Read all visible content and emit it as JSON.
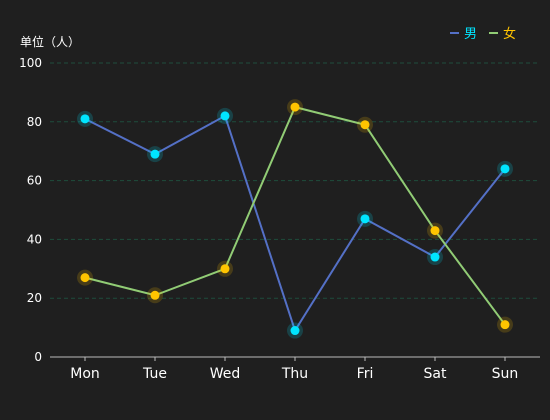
{
  "chart_data": {
    "type": "line",
    "unit_label": "单位（人）",
    "categories": [
      "Mon",
      "Tue",
      "Wed",
      "Thu",
      "Fri",
      "Sat",
      "Sun"
    ],
    "ylim": [
      0,
      100
    ],
    "yticks": [
      0,
      20,
      40,
      60,
      80,
      100
    ],
    "grid": true,
    "legend_position": "top-right",
    "series": [
      {
        "name": "男",
        "values": [
          81,
          69,
          82,
          9,
          47,
          34,
          64
        ],
        "line_color": "#5470c6",
        "point_color": "#00e5ff",
        "legend_text_color": "#00e5ff"
      },
      {
        "name": "女",
        "values": [
          27,
          21,
          30,
          85,
          79,
          43,
          11
        ],
        "line_color": "#91cc75",
        "point_color": "#ffc400",
        "legend_text_color": "#ffc400"
      }
    ],
    "colors": {
      "background": "#1f1f1f",
      "grid": "#1f4d3d",
      "axis": "#bbbbbb",
      "text": "#ffffff"
    }
  }
}
